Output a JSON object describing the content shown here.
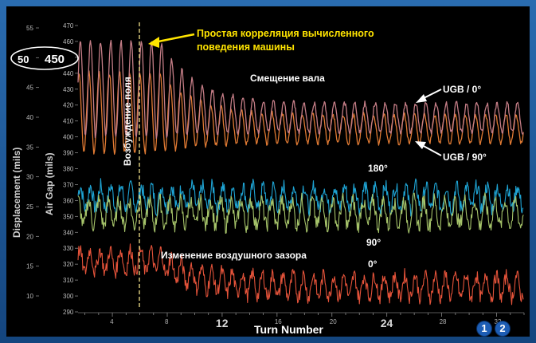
{
  "chart_data": {
    "type": "line",
    "xlabel": "Turn Number",
    "ylabel_left": "Displacement (mils)",
    "ylabel_right": "Air Gap (mils)",
    "x_ticks_major": [
      "12",
      "24"
    ],
    "x_ticks_minor": [
      "4",
      "8",
      "16",
      "20",
      "28",
      "32"
    ],
    "y_ticks_displacement": [
      "55",
      "50",
      "45",
      "40",
      "35",
      "30",
      "25",
      "20",
      "15",
      "10"
    ],
    "y_ticks_airgap": [
      "470",
      "460",
      "450",
      "440",
      "430",
      "420",
      "410",
      "400",
      "390",
      "380",
      "370",
      "360",
      "350",
      "340",
      "330",
      "320",
      "310",
      "300",
      "290"
    ],
    "highlight_left": "50",
    "highlight_right": "450",
    "ylim_displacement": [
      8,
      57
    ],
    "ylim_airgap": [
      287,
      473
    ],
    "field_excitation_label": "Возбуждение поля",
    "annotations": {
      "correlation_line1": "Простая корреляция вычисленного",
      "correlation_line2": "поведения машины",
      "shaft_displacement": "Смещение вала",
      "ugb_0": "UGB / 0°",
      "ugb_90": "UGB / 90°",
      "deg_180": "180°",
      "airgap_change": "Изменение воздушного зазора",
      "deg_90": "90°",
      "deg_0": "0°"
    },
    "series": [
      {
        "name": "UGB / 0°",
        "color": "#c47d86",
        "description_values": {
          "start_center": 430,
          "start_amp": 30,
          "end_center": 412,
          "end_amp": 9
        }
      },
      {
        "name": "UGB / 90°",
        "color": "#e07a33",
        "description_values": {
          "start_center": 415,
          "start_amp": 25,
          "end_center": 405,
          "end_amp": 9
        }
      },
      {
        "name": "180°",
        "color": "#1ea4d4",
        "description_values": {
          "center": 362,
          "amp": 7
        }
      },
      {
        "name": "90°",
        "color": "#a6c46a",
        "description_values": {
          "center": 352,
          "amp": 8
        }
      },
      {
        "name": "0°",
        "color": "#e5533a",
        "description_values": {
          "start_center": 322,
          "end_center": 306,
          "amp": 7
        }
      }
    ]
  },
  "badges": [
    "1",
    "2"
  ]
}
